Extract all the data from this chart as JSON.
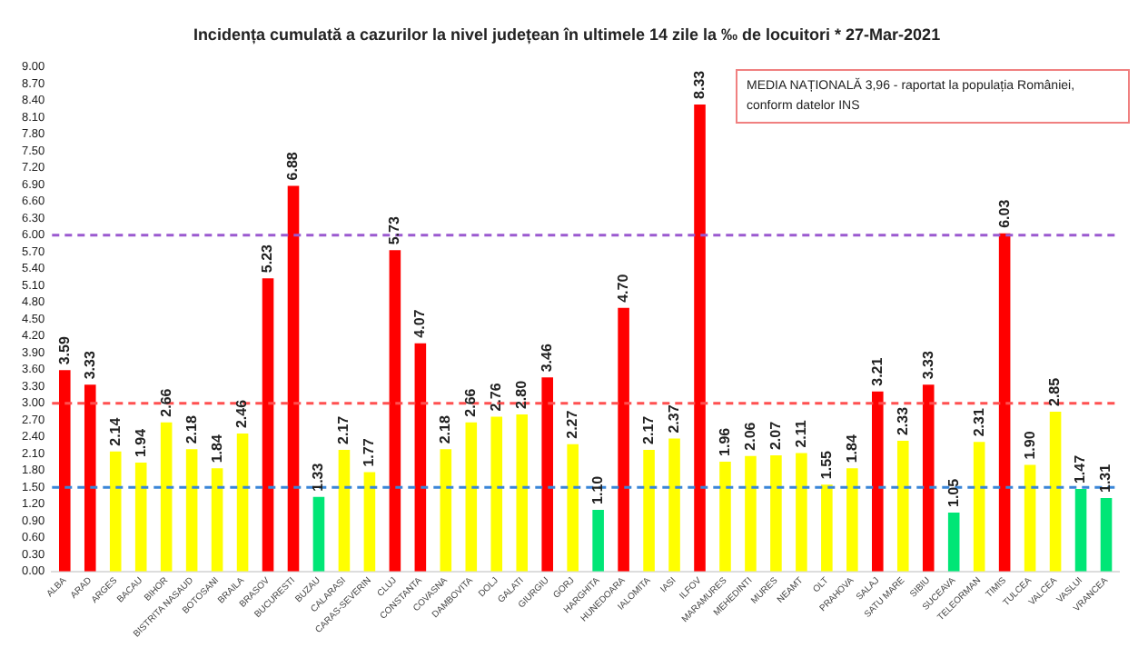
{
  "chart_data": {
    "type": "bar",
    "title": "Incidența cumulată a cazurilor la nivel județean în ultimele 14 zile la ‰ de locuitori * 27-Mar-2021",
    "categories": [
      "ALBA",
      "ARAD",
      "ARGES",
      "BACAU",
      "BIHOR",
      "BISTRITA NASAUD",
      "BOTOSANI",
      "BRAILA",
      "BRASOV",
      "BUCURESTI",
      "BUZAU",
      "CALARASI",
      "CARAS-SEVERIN",
      "CLUJ",
      "CONSTANTA",
      "COVASNA",
      "DAMBOVITA",
      "DOLJ",
      "GALATI",
      "GIURGIU",
      "GORJ",
      "HARGHITA",
      "HUNEDOARA",
      "IALOMITA",
      "IASI",
      "ILFOV",
      "MARAMURES",
      "MEHEDINTI",
      "MURES",
      "NEAMT",
      "OLT",
      "PRAHOVA",
      "SALAJ",
      "SATU MARE",
      "SIBIU",
      "SUCEAVA",
      "TELEORMAN",
      "TIMIS",
      "TULCEA",
      "VALCEA",
      "VASLUI",
      "VRANCEA"
    ],
    "values": [
      3.59,
      3.33,
      2.14,
      1.94,
      2.66,
      2.18,
      1.84,
      2.46,
      5.23,
      6.88,
      1.33,
      2.17,
      1.77,
      5.73,
      4.07,
      2.18,
      2.66,
      2.76,
      2.8,
      3.46,
      2.27,
      1.1,
      4.7,
      2.17,
      2.37,
      8.33,
      1.96,
      2.06,
      2.07,
      2.11,
      1.55,
      1.84,
      3.21,
      2.33,
      3.33,
      1.05,
      2.31,
      6.03,
      1.9,
      2.85,
      1.47,
      1.31
    ],
    "colors": [
      "#ff0000",
      "#ff0000",
      "#ffff00",
      "#ffff00",
      "#ffff00",
      "#ffff00",
      "#ffff00",
      "#ffff00",
      "#ff0000",
      "#ff0000",
      "#00e676",
      "#ffff00",
      "#ffff00",
      "#ff0000",
      "#ff0000",
      "#ffff00",
      "#ffff00",
      "#ffff00",
      "#ffff00",
      "#ff0000",
      "#ffff00",
      "#00e676",
      "#ff0000",
      "#ffff00",
      "#ffff00",
      "#ff0000",
      "#ffff00",
      "#ffff00",
      "#ffff00",
      "#ffff00",
      "#ffff00",
      "#ffff00",
      "#ff0000",
      "#ffff00",
      "#ff0000",
      "#00e676",
      "#ffff00",
      "#ff0000",
      "#ffff00",
      "#ffff00",
      "#00e676",
      "#00e676"
    ],
    "ylim": [
      0,
      9
    ],
    "yticks": [
      {
        "value": 0,
        "label": "0.00"
      },
      {
        "value": 0.3,
        "label": "0.30"
      },
      {
        "value": 0.6,
        "label": "0.60"
      },
      {
        "value": 0.9,
        "label": "0.90"
      },
      {
        "value": 1.2,
        "label": "1.20"
      },
      {
        "value": 1.5,
        "label": "1.50"
      },
      {
        "value": 1.8,
        "label": "1.80"
      },
      {
        "value": 2.1,
        "label": "2.10"
      },
      {
        "value": 2.4,
        "label": "2.40"
      },
      {
        "value": 2.7,
        "label": "2.70"
      },
      {
        "value": 3,
        "label": "3.00"
      },
      {
        "value": 3.3,
        "label": "3.30"
      },
      {
        "value": 3.6,
        "label": "3.60"
      },
      {
        "value": 3.9,
        "label": "3.90"
      },
      {
        "value": 4.2,
        "label": "4.20"
      },
      {
        "value": 4.5,
        "label": "4.50"
      },
      {
        "value": 4.8,
        "label": "4.80"
      },
      {
        "value": 5.1,
        "label": "5.10"
      },
      {
        "value": 5.4,
        "label": "5.40"
      },
      {
        "value": 5.7,
        "label": "5.70"
      },
      {
        "value": 6,
        "label": "6.00"
      },
      {
        "value": 6.3,
        "label": "6.30"
      },
      {
        "value": 6.6,
        "label": "6.60"
      },
      {
        "value": 6.9,
        "label": "6.90"
      },
      {
        "value": 7.2,
        "label": "7.20"
      },
      {
        "value": 7.5,
        "label": "7.50"
      },
      {
        "value": 7.8,
        "label": "7.80"
      },
      {
        "value": 8.1,
        "label": "8.10"
      },
      {
        "value": 8.4,
        "label": "8.40"
      },
      {
        "value": 8.7,
        "label": "8.70"
      },
      {
        "value": 9,
        "label": "9.00"
      }
    ],
    "ref_lines": [
      {
        "axis": "y",
        "value": 6,
        "color": "#9b59d0",
        "line_style": "dashed"
      },
      {
        "axis": "y",
        "value": 3,
        "color": "#ff5050",
        "line_style": "dashed"
      },
      {
        "axis": "y",
        "value": 1.5,
        "color": "#3a86d8",
        "line_style": "dashed"
      }
    ],
    "annotations": [
      "MEDIA NAȚIONALĂ 3,96 - raportat la populația României, conform datelor INS"
    ],
    "value_labels": [
      "3.59",
      "3.33",
      "2.14",
      "1.94",
      "2.66",
      "2.18",
      "1.84",
      "2.46",
      "5.23",
      "6.88",
      "1.33",
      "2.17",
      "1.77",
      "5.73",
      "4.07",
      "2.18",
      "2.66",
      "2.76",
      "2.80",
      "3.46",
      "2.27",
      "1.10",
      "4.70",
      "2.17",
      "2.37",
      "8.33",
      "1.96",
      "2.06",
      "2.07",
      "2.11",
      "1.55",
      "1.84",
      "3.21",
      "2.33",
      "3.33",
      "1.05",
      "2.31",
      "6.03",
      "1.90",
      "2.85",
      "1.47",
      "1.31"
    ],
    "grid": false,
    "legend": false
  }
}
